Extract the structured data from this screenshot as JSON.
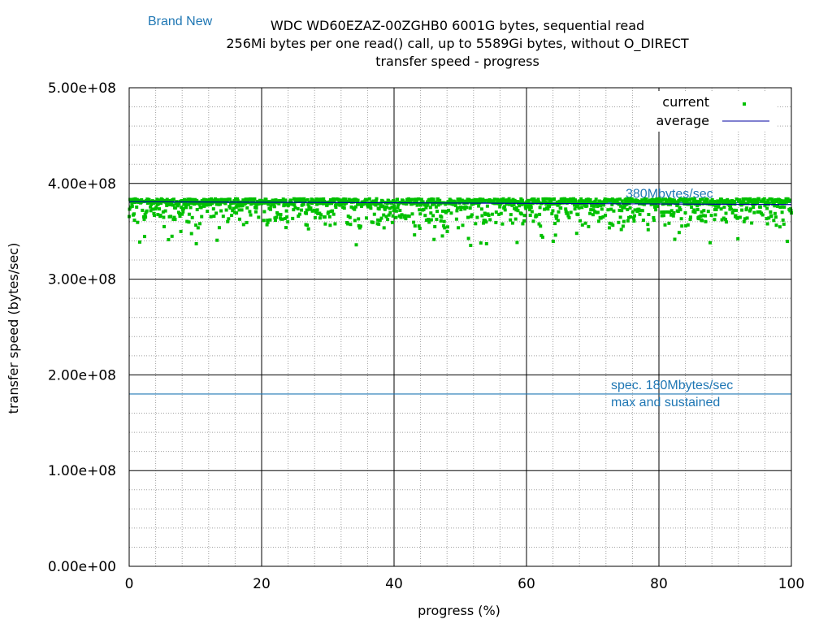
{
  "badge": "Brand New",
  "chart_data": {
    "type": "scatter",
    "title_lines": [
      "WDC WD60EZAZ-00ZGHB0 6001G bytes, sequential read",
      "256Mi bytes per one read() call, up to 5589Gi bytes, without O_DIRECT",
      "transfer speed - progress"
    ],
    "xlabel": "progress (%)",
    "ylabel": "transfer speed (bytes/sec)",
    "xlim": [
      0,
      100
    ],
    "ylim": [
      0,
      500000000
    ],
    "x_ticks": [
      0,
      20,
      40,
      60,
      80,
      100
    ],
    "x_tick_labels": [
      "0",
      "20",
      "40",
      "60",
      "80",
      "100"
    ],
    "y_ticks": [
      0,
      100000000,
      200000000,
      300000000,
      400000000,
      500000000
    ],
    "y_tick_labels": [
      "0.00e+00",
      "1.00e+08",
      "2.00e+08",
      "3.00e+08",
      "4.00e+08",
      "5.00e+08"
    ],
    "grid": true,
    "legend_position": "top-right",
    "series": [
      {
        "name": "current",
        "style": "points",
        "color": "#00c000",
        "point_count": 1500,
        "main_band": [
          378000000,
          384000000
        ],
        "scatter_range": [
          335000000,
          378000000
        ]
      },
      {
        "name": "average",
        "style": "line",
        "color": "#0000a0",
        "y_start": 381000000,
        "y_end": 378000000
      }
    ],
    "reference_lines": [
      {
        "y": 380000000,
        "color": "#1f77b4",
        "labels": [
          "380Mbytes/sec"
        ]
      },
      {
        "y": 180000000,
        "color": "#1f77b4",
        "labels": [
          "spec. 180Mbytes/sec",
          "max and sustained"
        ]
      }
    ]
  },
  "colors": {
    "annotation": "#1f77b4",
    "major_grid": "#000000",
    "minor_grid": "#a0a0a0"
  }
}
